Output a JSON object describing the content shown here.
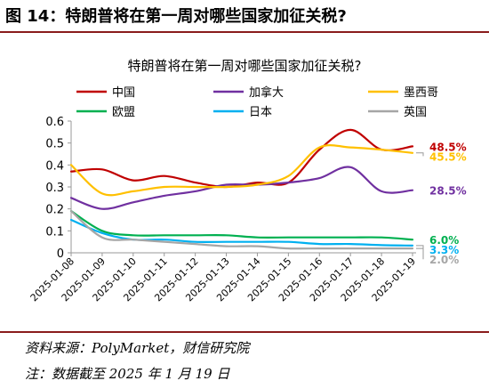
{
  "figure": {
    "title": "图 14：特朗普将在第一周对哪些国家加征关税?",
    "source": "资料来源：PolyMarket，财信研究院",
    "note": "注：数据截至 2025 年 1 月 19 日"
  },
  "chart_data": {
    "type": "line",
    "title": "特朗普将在第一周对哪些国家加征关税?",
    "xlabel": "",
    "ylabel": "",
    "ylim": [
      0,
      0.6
    ],
    "yticks": [
      "0",
      "0.1",
      "0.2",
      "0.3",
      "0.4",
      "0.5",
      "0.6"
    ],
    "x": [
      "2025-01-08",
      "2025-01-09",
      "2025-01-10",
      "2025-01-11",
      "2025-01-12",
      "2025-01-13",
      "2025-01-14",
      "2025-01-15",
      "2025-01-16",
      "2025-01-17",
      "2025-01-18",
      "2025-01-19"
    ],
    "grid": false,
    "legend": "top",
    "series": [
      {
        "name": "中国",
        "color": "#c00000",
        "end_label": "48.5%",
        "values": [
          0.37,
          0.38,
          0.33,
          0.35,
          0.32,
          0.3,
          0.32,
          0.32,
          0.47,
          0.56,
          0.47,
          0.485
        ]
      },
      {
        "name": "加拿大",
        "color": "#7030a0",
        "end_label": "28.5%",
        "values": [
          0.25,
          0.2,
          0.23,
          0.26,
          0.28,
          0.31,
          0.31,
          0.32,
          0.34,
          0.39,
          0.28,
          0.285
        ]
      },
      {
        "name": "墨西哥",
        "color": "#ffc000",
        "end_label": "45.5%",
        "values": [
          0.4,
          0.27,
          0.28,
          0.3,
          0.3,
          0.3,
          0.31,
          0.35,
          0.48,
          0.48,
          0.47,
          0.455
        ]
      },
      {
        "name": "欧盟",
        "color": "#00b050",
        "end_label": "6.0%",
        "values": [
          0.19,
          0.1,
          0.08,
          0.08,
          0.08,
          0.08,
          0.07,
          0.07,
          0.07,
          0.07,
          0.07,
          0.06
        ]
      },
      {
        "name": "日本",
        "color": "#00b0f0",
        "end_label": "3.3%",
        "values": [
          0.15,
          0.09,
          0.06,
          0.06,
          0.05,
          0.05,
          0.05,
          0.05,
          0.04,
          0.04,
          0.035,
          0.033
        ]
      },
      {
        "name": "英国",
        "color": "#a6a6a6",
        "end_label": "2.0%",
        "values": [
          0.19,
          0.07,
          0.06,
          0.05,
          0.04,
          0.03,
          0.03,
          0.02,
          0.02,
          0.02,
          0.02,
          0.02
        ]
      }
    ]
  }
}
